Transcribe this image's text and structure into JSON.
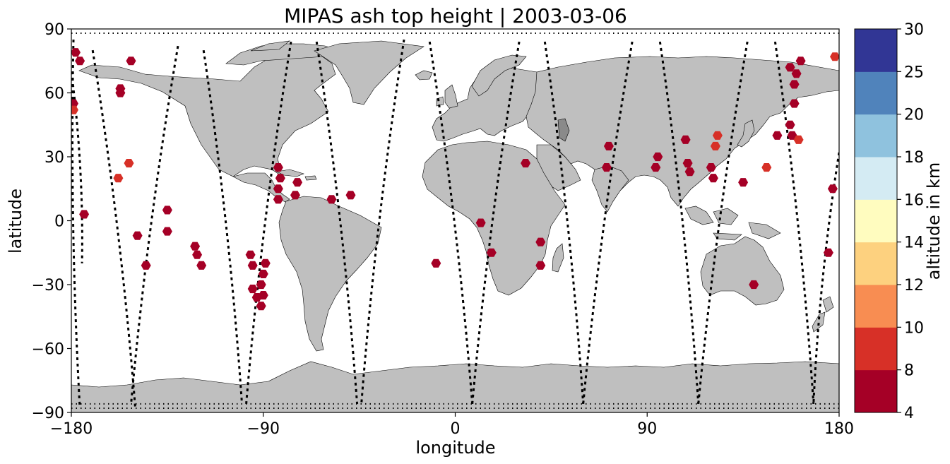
{
  "chart_data": {
    "type": "scatter",
    "title": "MIPAS ash top height | 2003-03-06",
    "xlabel": "longitude",
    "ylabel": "latitude",
    "xlim": [
      -180,
      180
    ],
    "ylim": [
      -90,
      90
    ],
    "xticks": [
      -180,
      -90,
      0,
      90,
      180
    ],
    "xtick_labels": [
      "−180",
      "−90",
      "0",
      "90",
      "180"
    ],
    "yticks": [
      90,
      60,
      30,
      0,
      -30,
      -60,
      -90
    ],
    "ytick_labels": [
      "90",
      "60",
      "30",
      "0",
      "−30",
      "−60",
      "−90"
    ],
    "grid": false,
    "background": "world map (land in grey)",
    "land_color": "#bfbfbf",
    "track_color": "#000000",
    "colorbar": {
      "label": "altitude in km",
      "bounds": [
        4,
        8,
        10,
        12,
        14,
        16,
        18,
        20,
        25,
        30
      ],
      "tick_labels": [
        "4",
        "8",
        "10",
        "12",
        "14",
        "16",
        "18",
        "20",
        "25",
        "30"
      ],
      "colors": [
        "#a50026",
        "#d73027",
        "#f46d43",
        "#fdae61",
        "#fee090",
        "#fffbbf",
        "#e0f3f8",
        "#abd9e9",
        "#74add1",
        "#4575b4",
        "#313695"
      ],
      "band_colors": [
        "#a50026",
        "#d73027",
        "#f88d52",
        "#fdd17f",
        "#fffcbf",
        "#d4ebf3",
        "#8fc2de",
        "#5083bb",
        "#313695"
      ]
    },
    "tracks": [
      {
        "start": [
          -179,
          85
        ],
        "end": [
          -176,
          -88
        ]
      },
      {
        "start": [
          -170,
          80
        ],
        "end": [
          -150,
          -88
        ]
      },
      {
        "start": [
          -130,
          82
        ],
        "end": [
          -152,
          -86
        ]
      },
      {
        "start": [
          -118,
          80
        ],
        "end": [
          -100,
          -86
        ]
      },
      {
        "start": [
          -77,
          84
        ],
        "end": [
          -98,
          -86
        ]
      },
      {
        "start": [
          -65,
          84
        ],
        "end": [
          -46,
          -86
        ]
      },
      {
        "start": [
          -24,
          85
        ],
        "end": [
          -44,
          -86
        ]
      },
      {
        "start": [
          -12,
          84
        ],
        "end": [
          8,
          -86
        ]
      },
      {
        "start": [
          30,
          84
        ],
        "end": [
          8,
          -86
        ]
      },
      {
        "start": [
          42,
          84
        ],
        "end": [
          60,
          -86
        ]
      },
      {
        "start": [
          83,
          84
        ],
        "end": [
          60,
          -86
        ]
      },
      {
        "start": [
          96,
          84
        ],
        "end": [
          114,
          -86
        ]
      },
      {
        "start": [
          137,
          84
        ],
        "end": [
          114,
          -86
        ]
      },
      {
        "start": [
          150,
          84
        ],
        "end": [
          168,
          -86
        ]
      },
      {
        "start": [
          180,
          32
        ],
        "end": [
          168,
          -86
        ]
      },
      {
        "start": [
          -180,
          70
        ],
        "end": [
          -175,
          -20
        ]
      }
    ],
    "points": [
      {
        "lon": -178,
        "lat": 79,
        "alt": 7
      },
      {
        "lon": -176,
        "lat": 75,
        "alt": 7
      },
      {
        "lon": -179,
        "lat": 55,
        "alt": 7
      },
      {
        "lon": -179,
        "lat": 52,
        "alt": 9
      },
      {
        "lon": -174,
        "lat": 3,
        "alt": 7
      },
      {
        "lon": -157,
        "lat": 62,
        "alt": 7
      },
      {
        "lon": -157,
        "lat": 60,
        "alt": 7
      },
      {
        "lon": -152,
        "lat": 75,
        "alt": 7
      },
      {
        "lon": -158,
        "lat": 20,
        "alt": 9
      },
      {
        "lon": -153,
        "lat": 27,
        "alt": 9
      },
      {
        "lon": -149,
        "lat": -7,
        "alt": 7
      },
      {
        "lon": -145,
        "lat": -21,
        "alt": 7
      },
      {
        "lon": -135,
        "lat": 5,
        "alt": 7
      },
      {
        "lon": -135,
        "lat": -5,
        "alt": 7
      },
      {
        "lon": -122,
        "lat": -12,
        "alt": 7
      },
      {
        "lon": -121,
        "lat": -16,
        "alt": 7
      },
      {
        "lon": -119,
        "lat": -21,
        "alt": 7
      },
      {
        "lon": -96,
        "lat": -16,
        "alt": 7
      },
      {
        "lon": -95,
        "lat": -21,
        "alt": 7
      },
      {
        "lon": -95,
        "lat": -32,
        "alt": 7
      },
      {
        "lon": -93,
        "lat": -36,
        "alt": 7
      },
      {
        "lon": -89,
        "lat": -20,
        "alt": 7
      },
      {
        "lon": -90,
        "lat": -25,
        "alt": 7
      },
      {
        "lon": -91,
        "lat": -30,
        "alt": 7
      },
      {
        "lon": -90,
        "lat": -35,
        "alt": 7
      },
      {
        "lon": -91,
        "lat": -40,
        "alt": 7
      },
      {
        "lon": -83,
        "lat": 25,
        "alt": 7
      },
      {
        "lon": -82,
        "lat": 20,
        "alt": 7
      },
      {
        "lon": -83,
        "lat": 15,
        "alt": 7
      },
      {
        "lon": -83,
        "lat": 10,
        "alt": 7
      },
      {
        "lon": -74,
        "lat": 18,
        "alt": 7
      },
      {
        "lon": -75,
        "lat": 12,
        "alt": 7
      },
      {
        "lon": -58,
        "lat": 10,
        "alt": 7
      },
      {
        "lon": -49,
        "lat": 12,
        "alt": 7
      },
      {
        "lon": -9,
        "lat": -20,
        "alt": 7
      },
      {
        "lon": 12,
        "lat": -1,
        "alt": 7
      },
      {
        "lon": 17,
        "lat": -15,
        "alt": 7
      },
      {
        "lon": 33,
        "lat": 27,
        "alt": 7
      },
      {
        "lon": 40,
        "lat": -10,
        "alt": 7
      },
      {
        "lon": 40,
        "lat": -21,
        "alt": 7
      },
      {
        "lon": 71,
        "lat": 25,
        "alt": 7
      },
      {
        "lon": 72,
        "lat": 35,
        "alt": 7
      },
      {
        "lon": 95,
        "lat": 30,
        "alt": 7
      },
      {
        "lon": 94,
        "lat": 25,
        "alt": 7
      },
      {
        "lon": 108,
        "lat": 38,
        "alt": 7
      },
      {
        "lon": 109,
        "lat": 27,
        "alt": 7
      },
      {
        "lon": 110,
        "lat": 23,
        "alt": 7
      },
      {
        "lon": 120,
        "lat": 25,
        "alt": 7
      },
      {
        "lon": 121,
        "lat": 20,
        "alt": 7
      },
      {
        "lon": 123,
        "lat": 40,
        "alt": 9
      },
      {
        "lon": 122,
        "lat": 35,
        "alt": 9
      },
      {
        "lon": 135,
        "lat": 18,
        "alt": 7
      },
      {
        "lon": 140,
        "lat": -30,
        "alt": 7
      },
      {
        "lon": 146,
        "lat": 25,
        "alt": 9
      },
      {
        "lon": 151,
        "lat": 40,
        "alt": 7
      },
      {
        "lon": 157,
        "lat": 72,
        "alt": 7
      },
      {
        "lon": 159,
        "lat": 64,
        "alt": 7
      },
      {
        "lon": 160,
        "lat": 69,
        "alt": 7
      },
      {
        "lon": 162,
        "lat": 75,
        "alt": 7
      },
      {
        "lon": 159,
        "lat": 55,
        "alt": 7
      },
      {
        "lon": 157,
        "lat": 45,
        "alt": 7
      },
      {
        "lon": 158,
        "lat": 40,
        "alt": 7
      },
      {
        "lon": 161,
        "lat": 38,
        "alt": 9
      },
      {
        "lon": 178,
        "lat": 77,
        "alt": 9
      },
      {
        "lon": 177,
        "lat": 15,
        "alt": 7
      },
      {
        "lon": 175,
        "lat": -15,
        "alt": 7
      }
    ]
  }
}
